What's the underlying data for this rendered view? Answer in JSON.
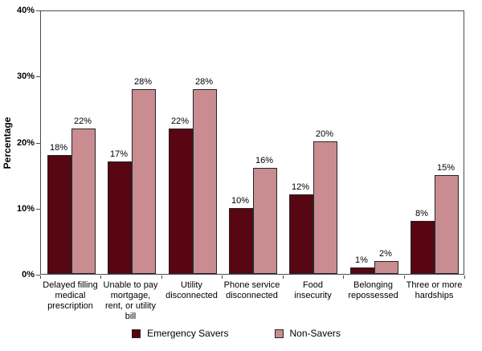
{
  "figure": {
    "background_color": "#ffffff",
    "axis_color": "#4d4d4d",
    "bar_border_color": "#262626"
  },
  "chart_data": {
    "type": "bar",
    "title": "",
    "xlabel": "",
    "ylabel": "Percentage",
    "ylim": [
      0,
      40
    ],
    "ytick_values": [
      0,
      10,
      20,
      30,
      40
    ],
    "ytick_labels": [
      "0%",
      "10%",
      "20%",
      "30%",
      "40%"
    ],
    "grid": false,
    "legend_position": "bottom",
    "value_label_suffix": "%",
    "categories": [
      "Delayed filling\nmedical\nprescription",
      "Unable to pay\nmortgage,\nrent, or utility\nbill",
      "Utility\ndisconnected",
      "Phone service\ndisconnected",
      "Food\ninsecurity",
      "Belonging\nrepossessed",
      "Three or more\nhardships"
    ],
    "series": [
      {
        "name": "Emergency Savers",
        "color": "#570612",
        "values": [
          18,
          17,
          22,
          10,
          12,
          1,
          8
        ]
      },
      {
        "name": "Non-Savers",
        "color": "#C98C90",
        "values": [
          22,
          28,
          28,
          16,
          20,
          2,
          15
        ]
      }
    ]
  }
}
